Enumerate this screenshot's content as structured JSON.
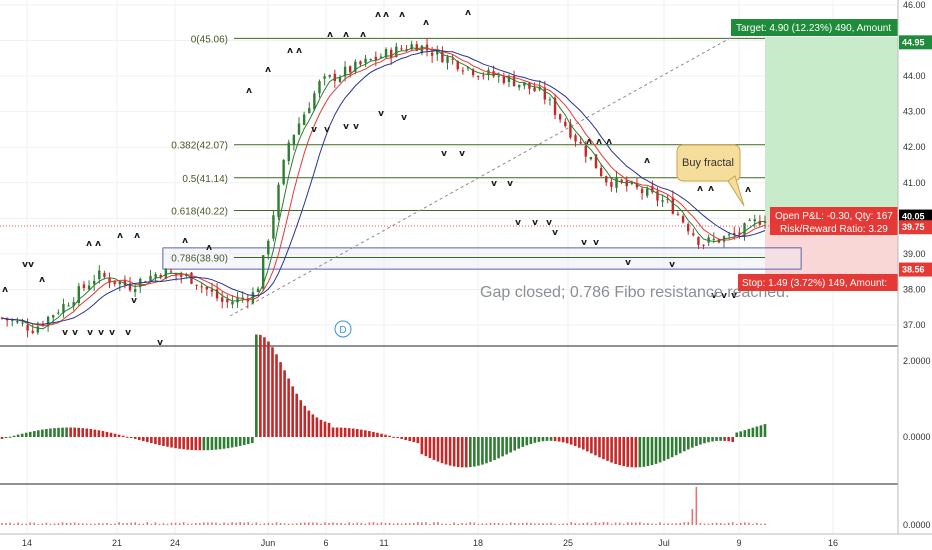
{
  "chart_data": [
    {
      "type": "candlestick",
      "name_visible": "",
      "y_axis_ticks": [
        "46.00",
        "45.00",
        "44.00",
        "43.00",
        "42.00",
        "41.00",
        "40.00",
        "39.00",
        "38.00",
        "37.00"
      ],
      "ylim": [
        36.3,
        46.1
      ],
      "x_axis_ticks": [
        "14",
        "21",
        "24",
        "Jun",
        "6",
        "11",
        "18",
        "25",
        "Jul",
        "9",
        "16"
      ],
      "price_labels": [
        {
          "text": "44.95",
          "value": 44.95,
          "color": "#1e8c3a"
        },
        {
          "text": "40.05",
          "value": 40.05,
          "color": "#000000"
        },
        {
          "text": "39.75",
          "value": 39.75,
          "color": "#e53935"
        },
        {
          "text": "38.56",
          "value": 38.56,
          "color": "#e53935"
        }
      ],
      "fibonacci": [
        {
          "label": "0(45.06)",
          "value": 45.06
        },
        {
          "label": "0.382(42.07)",
          "value": 42.07
        },
        {
          "label": "0.5(41.14)",
          "value": 41.14
        },
        {
          "label": "0.618(40.22)",
          "value": 40.22
        },
        {
          "label": "0.786(38.90)",
          "value": 38.9
        }
      ],
      "position": {
        "target_text": "Target: 4.90 (12.23%) 490, Amount",
        "stop_text": "Stop: 1.49 (3.72%) 149, Amount:",
        "open_pnl_text": "Open P&L: -0.30, Qty: 167",
        "risk_reward_text": "Risk/Reward Ratio: 3.29",
        "entry": 40.05,
        "target": 44.95,
        "stop": 38.56
      },
      "annotations": {
        "buy_fractal": "Buy fractal",
        "gap_note": "Gap closed; 0.786 Fibo resistance reached.",
        "dividend_marker": "D"
      },
      "series": [
        {
          "legend": "",
          "color": "#2e7d32",
          "kind": "fast moving average"
        },
        {
          "legend": "",
          "color": "#e53935",
          "kind": "medium moving average"
        },
        {
          "legend": "",
          "color": "#283593",
          "kind": "slow moving average"
        }
      ],
      "close_path": [
        {
          "date": "May 10",
          "close": 37.2
        },
        {
          "date": "May 14",
          "close": 36.9
        },
        {
          "date": "May 16",
          "close": 37.6
        },
        {
          "date": "May 18",
          "close": 38.4
        },
        {
          "date": "May 21",
          "close": 38.1
        },
        {
          "date": "May 23",
          "close": 38.5
        },
        {
          "date": "May 24",
          "close": 38.3
        },
        {
          "date": "May 28",
          "close": 37.6
        },
        {
          "date": "May 30",
          "close": 37.9
        },
        {
          "date": "Jun 1",
          "close": 42.1
        },
        {
          "date": "Jun 4",
          "close": 43.8
        },
        {
          "date": "Jun 6",
          "close": 44.2
        },
        {
          "date": "Jun 8",
          "close": 44.6
        },
        {
          "date": "Jun 11",
          "close": 44.9
        },
        {
          "date": "Jun 13",
          "close": 44.5
        },
        {
          "date": "Jun 15",
          "close": 44.1
        },
        {
          "date": "Jun 18",
          "close": 43.9
        },
        {
          "date": "Jun 20",
          "close": 43.5
        },
        {
          "date": "Jun 22",
          "close": 42.3
        },
        {
          "date": "Jun 25",
          "close": 41.1
        },
        {
          "date": "Jun 27",
          "close": 40.8
        },
        {
          "date": "Jun 29",
          "close": 40.4
        },
        {
          "date": "Jul 2",
          "close": 39.3
        },
        {
          "date": "Jul 5",
          "close": 39.5
        },
        {
          "date": "Jul 9",
          "close": 40.05
        }
      ]
    },
    {
      "type": "histogram",
      "y_axis_ticks": [
        "2.0000",
        "0.0000"
      ],
      "ylim": [
        -1.2,
        2.7
      ]
    },
    {
      "type": "histogram",
      "y_axis_ticks": [
        "0.0000"
      ]
    }
  ]
}
